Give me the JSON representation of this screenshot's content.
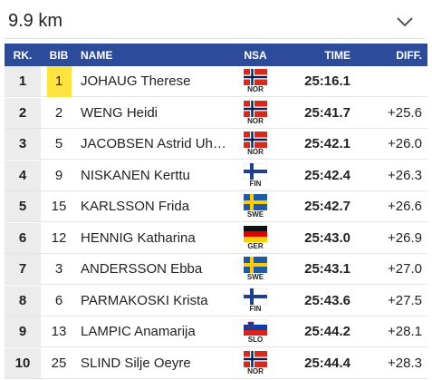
{
  "dropdown": "9.9 km",
  "table": {
    "columns": [
      "RK.",
      "BIB",
      "NAME",
      "NSA",
      "TIME",
      "DIFF."
    ],
    "rows": [
      {
        "rank": 1,
        "bib": 1,
        "name": "JOHAUG Therese",
        "nsa": "NOR",
        "time": "25:16.1"
      },
      {
        "rank": 2,
        "bib": 2,
        "name": "WENG Heidi",
        "nsa": "NOR",
        "time": "25:41.7",
        "diff": "+25.6"
      },
      {
        "rank": 3,
        "bib": 5,
        "name": "JACOBSEN Astrid Uh…",
        "nsa": "NOR",
        "time": "25:42.1",
        "diff": "+26.0"
      },
      {
        "rank": 4,
        "bib": 9,
        "name": "NISKANEN Kerttu",
        "nsa": "FIN",
        "time": "25:42.4",
        "diff": "+26.3"
      },
      {
        "rank": 5,
        "bib": 15,
        "name": "KARLSSON Frida",
        "nsa": "SWE",
        "time": "25:42.7",
        "diff": "+26.6"
      },
      {
        "rank": 6,
        "bib": 12,
        "name": "HENNIG Katharina",
        "nsa": "GER",
        "time": "25:43.0",
        "diff": "+26.9"
      },
      {
        "rank": 7,
        "bib": 3,
        "name": "ANDERSSON Ebba",
        "nsa": "SWE",
        "time": "25:43.1",
        "diff": "+27.0"
      },
      {
        "rank": 8,
        "bib": 6,
        "name": "PARMAKOSKI Krista",
        "nsa": "FIN",
        "time": "25:43.6",
        "diff": "+27.5"
      },
      {
        "rank": 9,
        "bib": 13,
        "name": "LAMPIC Anamarija",
        "nsa": "SLO",
        "time": "25:44.2",
        "diff": "+28.1"
      },
      {
        "rank": 10,
        "bib": 25,
        "name": "SLIND Silje Oeyre",
        "nsa": "NOR",
        "time": "25:44.4",
        "diff": "+28.3"
      }
    ]
  }
}
